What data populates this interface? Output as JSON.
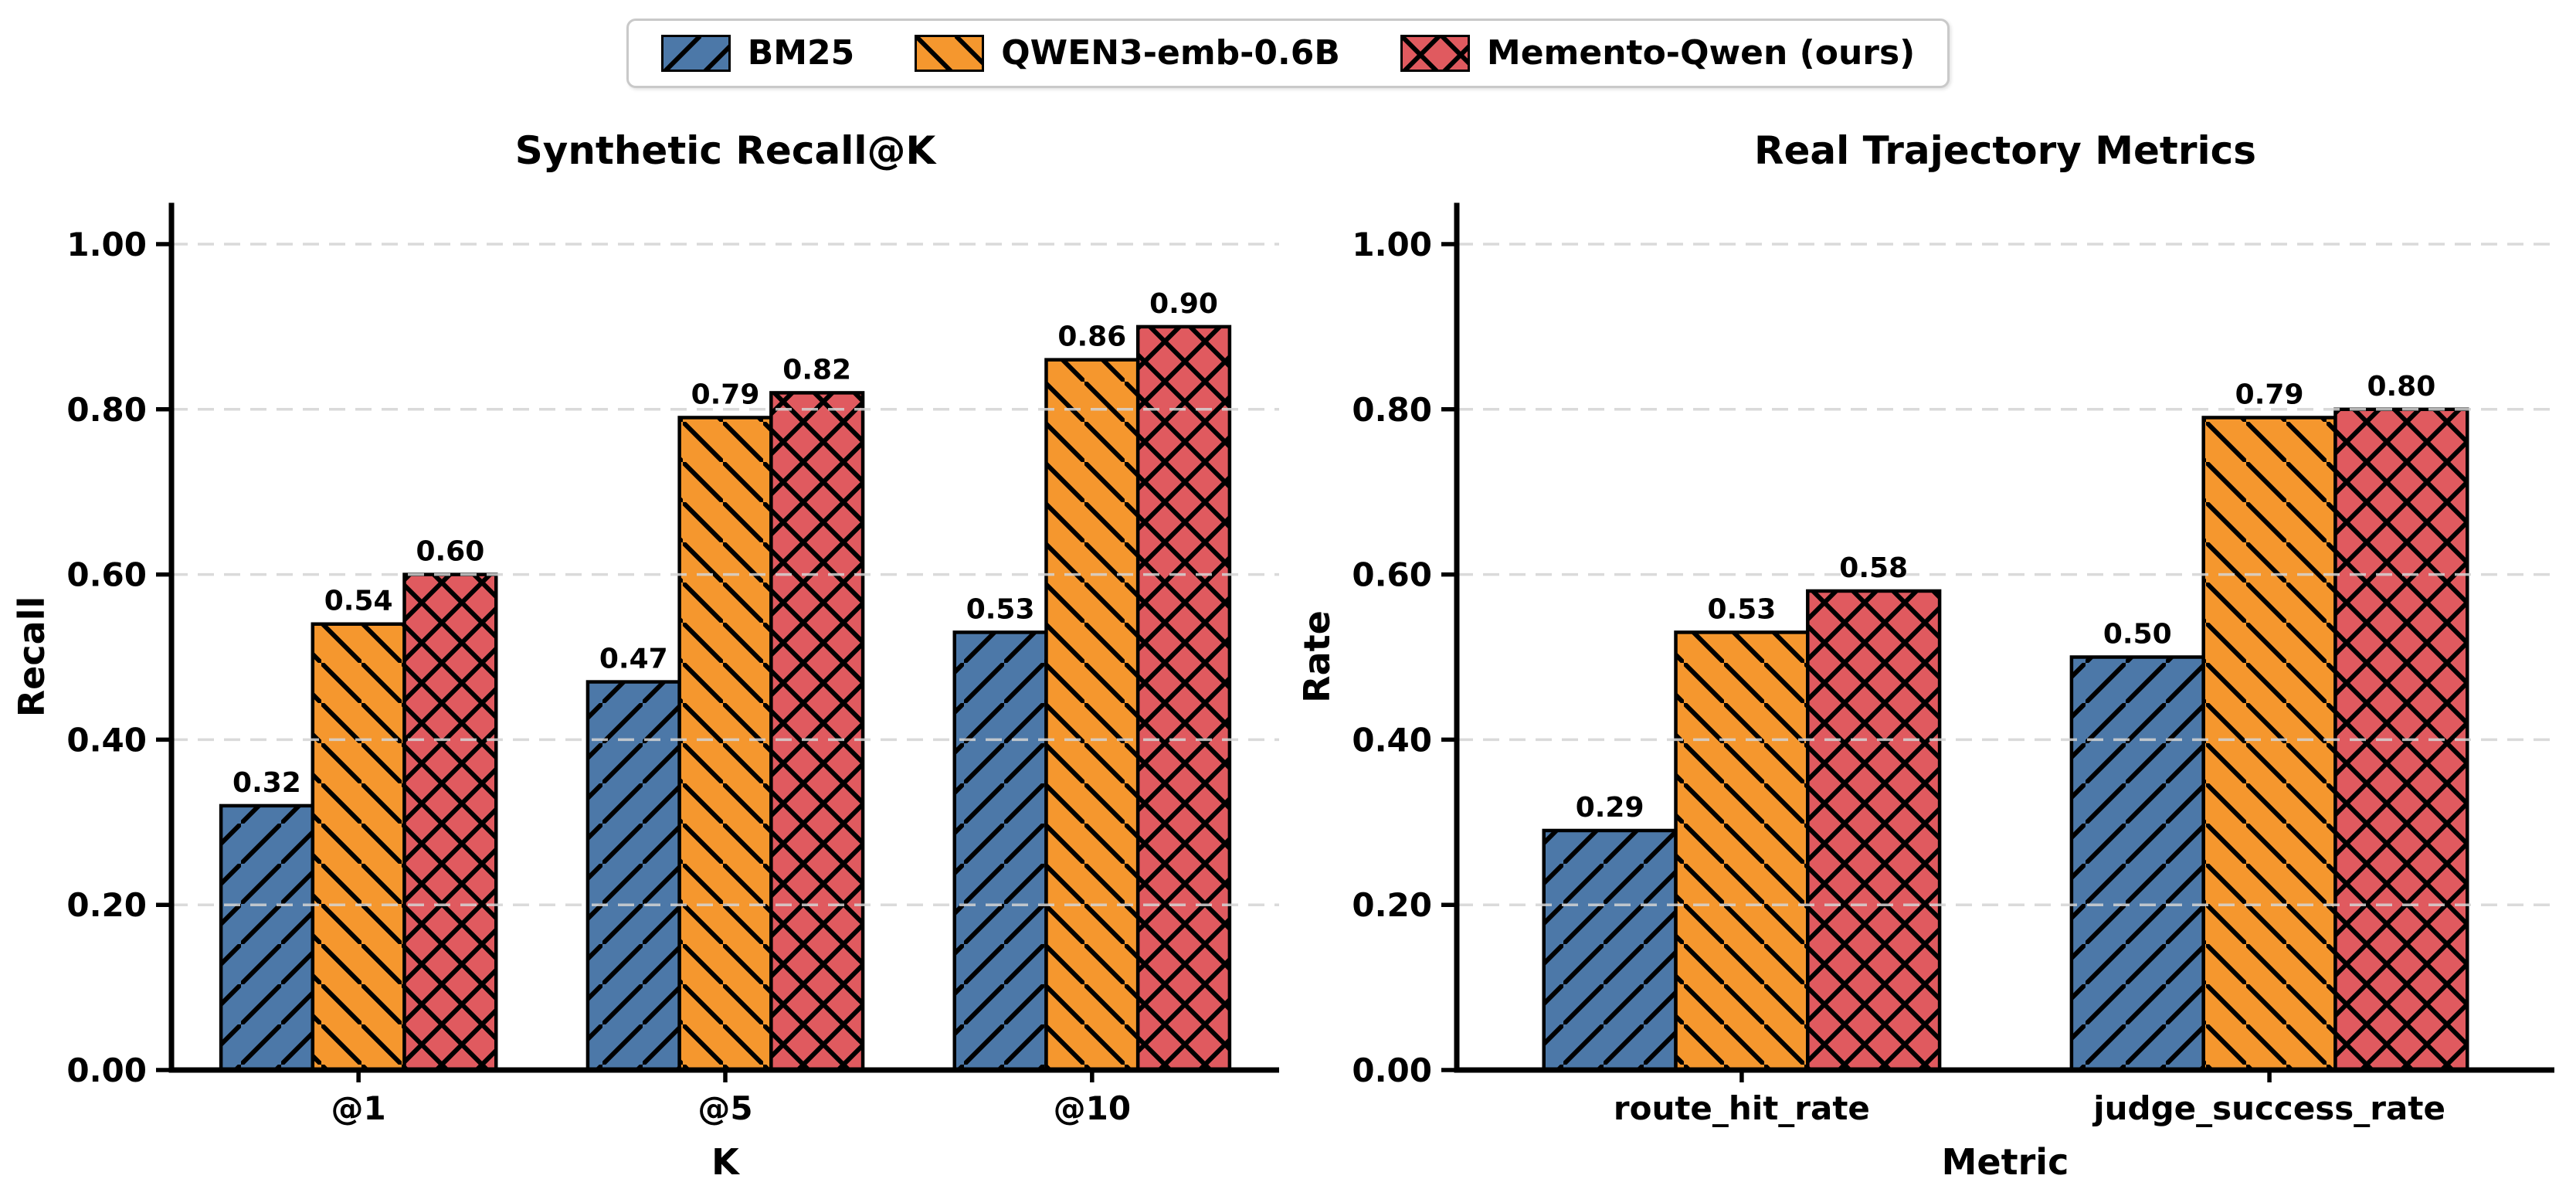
{
  "legend": {
    "position": "upper center outside",
    "items": [
      {
        "label": "BM25",
        "color": "#4C78A8",
        "hatch": "/"
      },
      {
        "label": "QWEN3-emb-0.6B",
        "color": "#F5972E",
        "hatch": "\\"
      },
      {
        "label": "Memento-Qwen (ours)",
        "color": "#E05A5F",
        "hatch": "x"
      }
    ]
  },
  "chart_data": [
    {
      "type": "bar",
      "title": "Synthetic Recall@K",
      "xlabel": "K",
      "ylabel": "Recall",
      "categories": [
        "@1",
        "@5",
        "@10"
      ],
      "series": [
        {
          "name": "BM25",
          "values": [
            0.32,
            0.47,
            0.53
          ]
        },
        {
          "name": "QWEN3-emb-0.6B",
          "values": [
            0.54,
            0.79,
            0.86
          ]
        },
        {
          "name": "Memento-Qwen (ours)",
          "values": [
            0.6,
            0.82,
            0.9
          ]
        }
      ],
      "ytick_labels": [
        "0.00",
        "0.20",
        "0.40",
        "0.60",
        "0.80",
        "1.00"
      ],
      "yticks": [
        0.0,
        0.2,
        0.4,
        0.6,
        0.8,
        1.0
      ],
      "ylim": [
        0,
        1.05
      ],
      "grid": "horizontal dashed, drawn over bars",
      "value_label_format": "2 decimals above each bar"
    },
    {
      "type": "bar",
      "title": "Real Trajectory Metrics",
      "xlabel": "Metric",
      "ylabel": "Rate",
      "categories": [
        "route_hit_rate",
        "judge_success_rate"
      ],
      "series": [
        {
          "name": "BM25",
          "values": [
            0.29,
            0.5
          ]
        },
        {
          "name": "QWEN3-emb-0.6B",
          "values": [
            0.53,
            0.79
          ]
        },
        {
          "name": "Memento-Qwen (ours)",
          "values": [
            0.58,
            0.8
          ]
        }
      ],
      "ytick_labels": [
        "0.00",
        "0.20",
        "0.40",
        "0.60",
        "0.80",
        "1.00"
      ],
      "yticks": [
        0.0,
        0.2,
        0.4,
        0.6,
        0.8,
        1.0
      ],
      "ylim": [
        0,
        1.05
      ],
      "grid": "horizontal dashed, drawn over bars",
      "value_label_format": "2 decimals above each bar"
    }
  ],
  "styles": {
    "bar_edge_color": "#000000",
    "hatch_color": "#000000",
    "grid_color": "#D3D3D3",
    "spine_color": "#000000",
    "text_color": "#000000",
    "legend_border_color": "#C9C9C9",
    "background": "#FFFFFF"
  }
}
